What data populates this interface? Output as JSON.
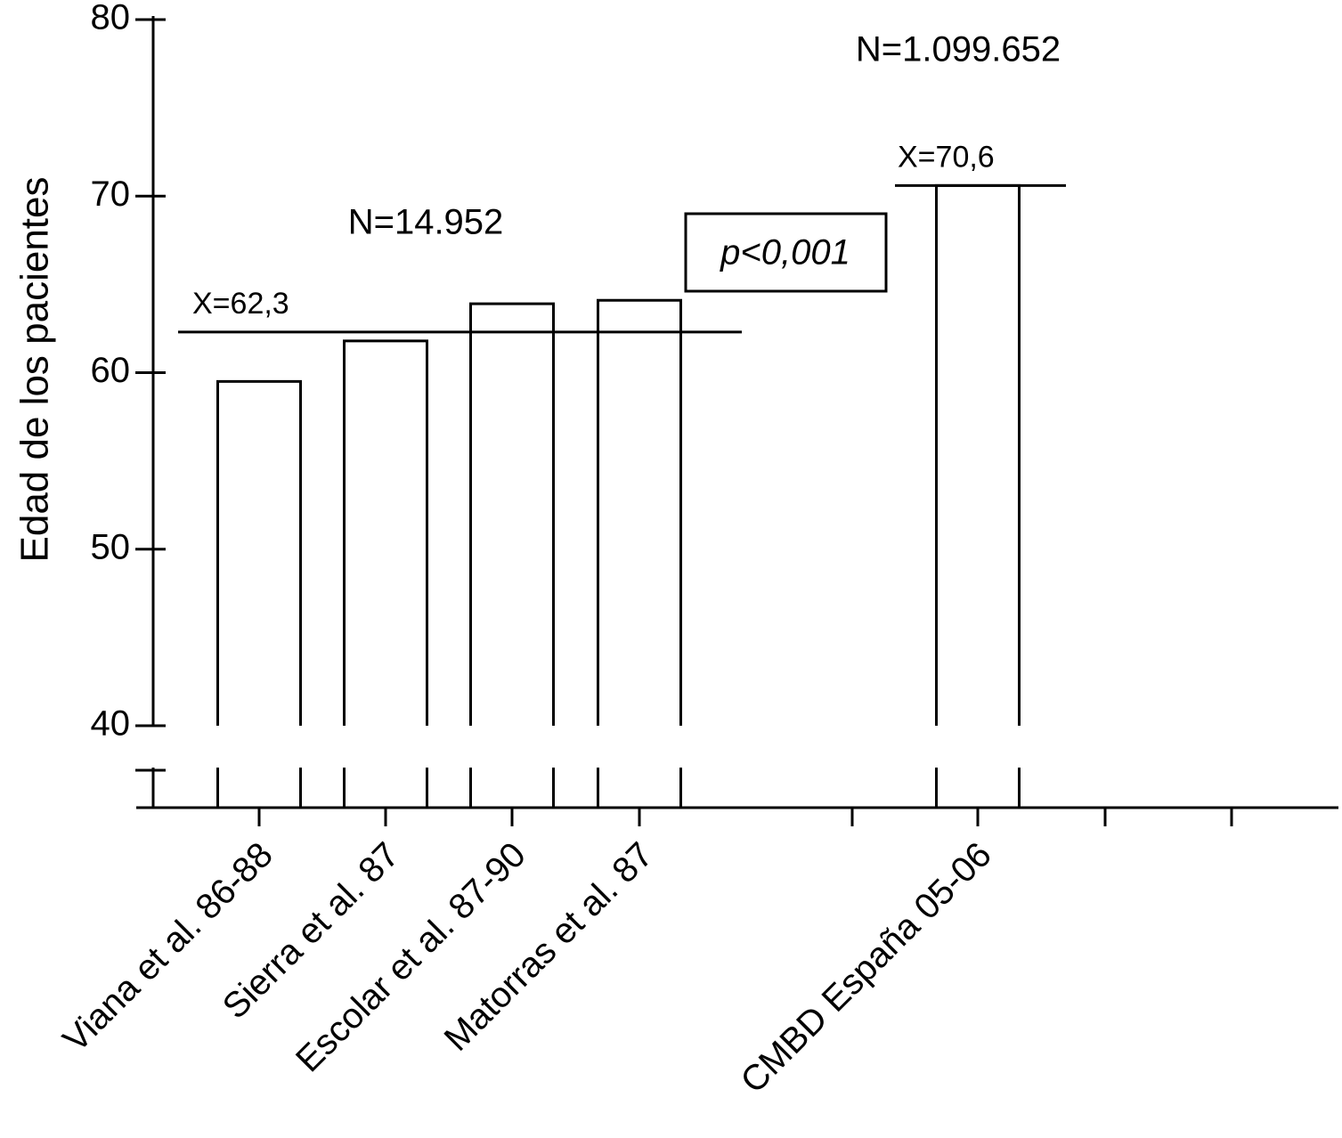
{
  "chart_data": {
    "type": "bar",
    "y_label": "Edad de los pacientes",
    "categories": [
      "Viana et al. 86-88",
      "Sierra et al. 87",
      "Escolar et al. 87-90",
      "Matorras et al. 87",
      null,
      "CMBD España 05-06",
      null,
      null
    ],
    "values": [
      59.5,
      61.8,
      63.9,
      64.1,
      null,
      70.6,
      null,
      null
    ],
    "color": "#ffffff",
    "ylim": [
      40,
      80
    ],
    "yticks": [
      40,
      50,
      60,
      70,
      80
    ],
    "means": [
      {
        "label": "X=62,3",
        "value": 62.3
      },
      {
        "label": "X=70,6",
        "value": 70.6
      }
    ],
    "annotations": [
      "N=14.952",
      "N=1.099.652",
      "p<0,001"
    ]
  }
}
